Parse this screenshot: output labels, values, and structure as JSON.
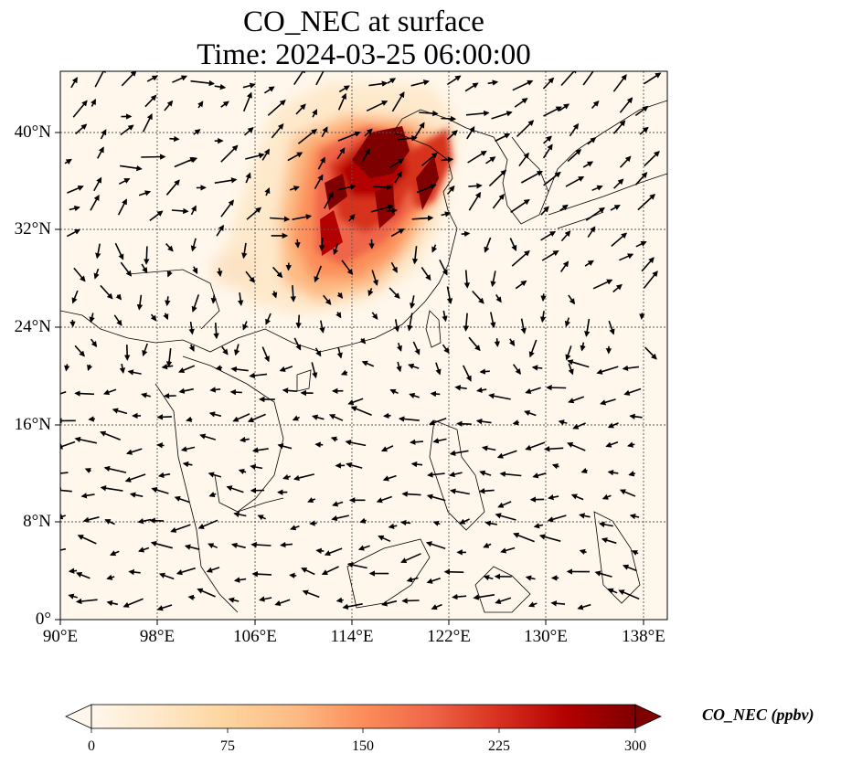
{
  "title": {
    "line1": "CO_NEC at surface",
    "line2": "Time: 2024-03-25 06:00:00"
  },
  "map": {
    "lon_range": [
      90,
      140
    ],
    "lat_range": [
      0,
      45
    ],
    "lon_ticks": [
      "90°E",
      "98°E",
      "106°E",
      "114°E",
      "122°E",
      "130°E",
      "138°E"
    ],
    "lat_ticks": [
      "0°",
      "8°N",
      "16°N",
      "24°N",
      "32°N",
      "40°N"
    ],
    "gridlines": true,
    "field": "CO_NEC",
    "hotspot_region": "North China Plain and Yangtze River Delta (approx. 108–123°E, 25–41°N)",
    "max_region_values": "exceeds 300 ppbv near 115–118°E, 37–41°N",
    "wind_vectors": true
  },
  "colorbar": {
    "label": "CO_NEC (ppbv)",
    "ticks": [
      "0",
      "75",
      "150",
      "225",
      "300"
    ],
    "colormap": "OrRd",
    "extend": "both",
    "colors": [
      "#fff7ec",
      "#fee8c8",
      "#fdd49e",
      "#fdbb84",
      "#fc8d59",
      "#ef6548",
      "#d7301f",
      "#b30000",
      "#7f0000"
    ]
  }
}
